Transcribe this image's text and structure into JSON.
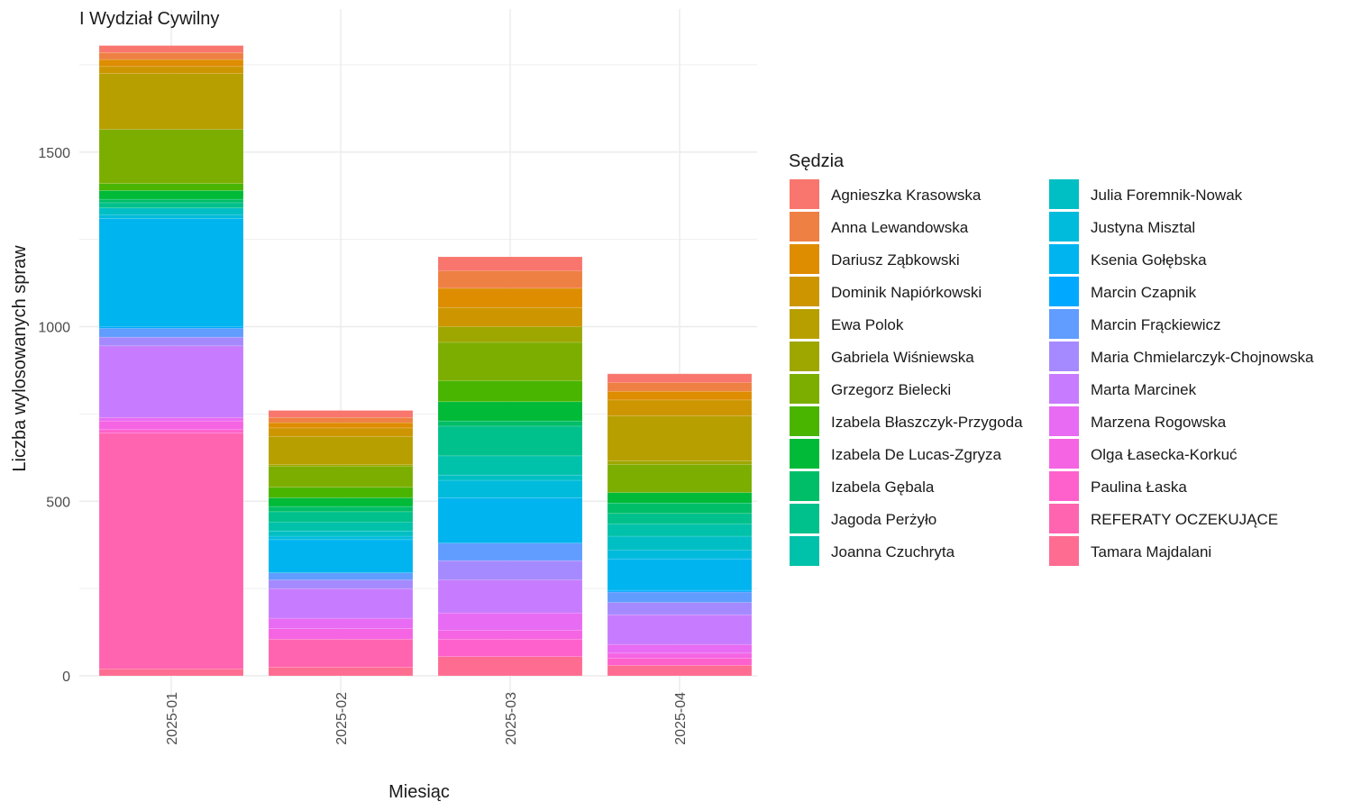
{
  "chart_data": {
    "type": "bar",
    "stacked": true,
    "title": "I Wydział Cywilny",
    "xlabel": "Miesiąc",
    "ylabel": "Liczba wylosowanych spraw",
    "ylim": [
      0,
      1900
    ],
    "yticks": [
      0,
      500,
      1000,
      1500
    ],
    "grid": true,
    "legend_title": "Sędzia",
    "legend_position": "right",
    "categories": [
      "2025-01",
      "2025-02",
      "2025-03",
      "2025-04"
    ],
    "series": [
      {
        "name": "Agnieszka Krasowska",
        "color": "#F8766D",
        "values": [
          20,
          20,
          40,
          25
        ]
      },
      {
        "name": "Anna Lewandowska",
        "color": "#EE8043",
        "values": [
          20,
          15,
          50,
          25
        ]
      },
      {
        "name": "Dariusz Ząbkowski",
        "color": "#DE8C00",
        "values": [
          20,
          15,
          55,
          25
        ]
      },
      {
        "name": "Dominik Napiórkowski",
        "color": "#CD9600",
        "values": [
          20,
          25,
          55,
          45
        ]
      },
      {
        "name": "Ewa Polok",
        "color": "#B79F00",
        "values": [
          160,
          80,
          0,
          130
        ]
      },
      {
        "name": "Gabriela Wiśniewska",
        "color": "#9DA700",
        "values": [
          0,
          5,
          45,
          10
        ]
      },
      {
        "name": "Grzegorz Bielecki",
        "color": "#7CAE00",
        "values": [
          155,
          60,
          110,
          80
        ]
      },
      {
        "name": "Izabela Błaszczyk-Przygoda",
        "color": "#49B500",
        "values": [
          20,
          30,
          60,
          0
        ]
      },
      {
        "name": "Izabela De Lucas-Zgryza",
        "color": "#00BA38",
        "values": [
          25,
          25,
          55,
          30
        ]
      },
      {
        "name": "Izabela Gębala",
        "color": "#00BE67",
        "values": [
          10,
          15,
          15,
          30
        ]
      },
      {
        "name": "Jagoda Perżyło",
        "color": "#00C08B",
        "values": [
          15,
          30,
          85,
          30
        ]
      },
      {
        "name": "Joanna Czuchryta",
        "color": "#00C1A9",
        "values": [
          0,
          25,
          55,
          35
        ]
      },
      {
        "name": "Julia Foremnik-Nowak",
        "color": "#00BFC4",
        "values": [
          20,
          15,
          15,
          40
        ]
      },
      {
        "name": "Justyna Misztal",
        "color": "#00BBDC",
        "values": [
          10,
          10,
          50,
          25
        ]
      },
      {
        "name": "Ksenia Gołębska",
        "color": "#00B4EF",
        "values": [
          310,
          95,
          130,
          90
        ]
      },
      {
        "name": "Marcin Czapnik",
        "color": "#00A9FF",
        "values": [
          5,
          0,
          0,
          5
        ]
      },
      {
        "name": "Marcin Frąckiewicz",
        "color": "#619CFF",
        "values": [
          25,
          20,
          50,
          30
        ]
      },
      {
        "name": "Maria Chmielarczyk-Chojnowska",
        "color": "#A58AFF",
        "values": [
          25,
          25,
          55,
          35
        ]
      },
      {
        "name": "Marta Marcinek",
        "color": "#C77CFF",
        "values": [
          205,
          85,
          95,
          85
        ]
      },
      {
        "name": "Marzena Rogowska",
        "color": "#E76BF3",
        "values": [
          10,
          30,
          50,
          25
        ]
      },
      {
        "name": "Olga Łasecka-Korkuć",
        "color": "#F564E3",
        "values": [
          25,
          30,
          25,
          15
        ]
      },
      {
        "name": "Paulina Łaska",
        "color": "#FF61CC",
        "values": [
          10,
          0,
          50,
          20
        ]
      },
      {
        "name": "REFERATY OCZEKUJĄCE",
        "color": "#FF64B0",
        "values": [
          675,
          80,
          0,
          0
        ]
      },
      {
        "name": "Tamara Majdalani",
        "color": "#FF6C91",
        "values": [
          20,
          25,
          55,
          30
        ]
      }
    ]
  }
}
